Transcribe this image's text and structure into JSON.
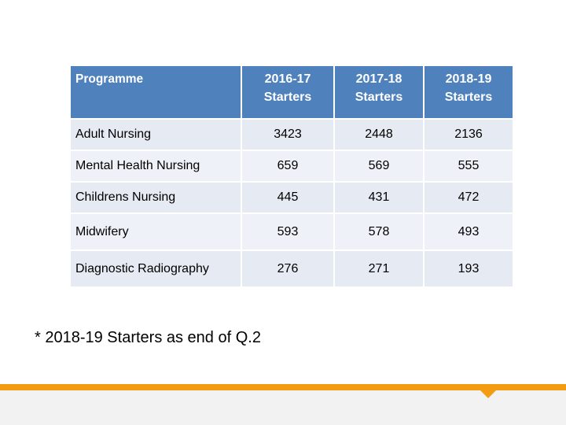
{
  "colors": {
    "header_bg": "#4f81bd",
    "accent_orange": "#f39c12"
  },
  "table": {
    "headers": [
      {
        "line1": "Programme",
        "line2": ""
      },
      {
        "line1": "2016-17",
        "line2": "Starters"
      },
      {
        "line1": "2017-18",
        "line2": "Starters"
      },
      {
        "line1": "2018-19",
        "line2": "Starters"
      }
    ],
    "rows": [
      {
        "programme": "Adult Nursing",
        "v2016": "3423",
        "v2017": "2448",
        "v2018": "2136"
      },
      {
        "programme": "Mental Health Nursing",
        "v2016": "659",
        "v2017": "569",
        "v2018": "555"
      },
      {
        "programme": "Childrens Nursing",
        "v2016": "445",
        "v2017": "431",
        "v2018": "472"
      },
      {
        "programme": "Midwifery",
        "v2016": "593",
        "v2017": "578",
        "v2018": "493"
      },
      {
        "programme": "Diagnostic Radiography",
        "v2016": "276",
        "v2017": "271",
        "v2018": "193"
      }
    ]
  },
  "footnote": "* 2018-19 Starters as end of Q.2"
}
